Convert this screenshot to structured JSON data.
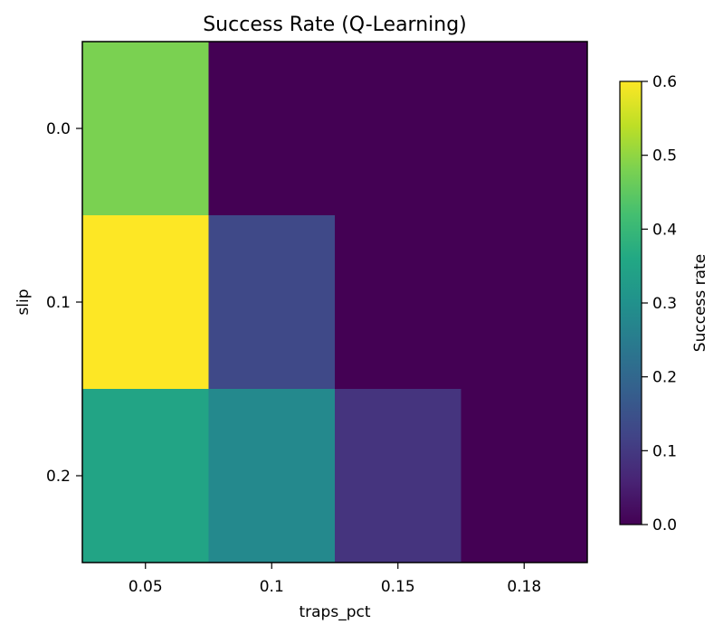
{
  "chart_data": {
    "type": "heatmap",
    "title": "Success Rate (Q-Learning)",
    "xlabel": "traps_pct",
    "ylabel": "slip",
    "x_categories": [
      "0.05",
      "0.1",
      "0.15",
      "0.18"
    ],
    "y_categories": [
      "0.0",
      "0.1",
      "0.2"
    ],
    "values": [
      [
        0.48,
        0.0,
        0.0,
        0.0
      ],
      [
        0.6,
        0.13,
        0.0,
        0.0
      ],
      [
        0.35,
        0.28,
        0.09,
        0.0
      ]
    ],
    "colormap": "viridis",
    "colorbar": {
      "label": "Success rate",
      "range": [
        0.0,
        0.6
      ],
      "ticks": [
        "0.0",
        "0.1",
        "0.2",
        "0.3",
        "0.4",
        "0.5",
        "0.6"
      ]
    }
  }
}
